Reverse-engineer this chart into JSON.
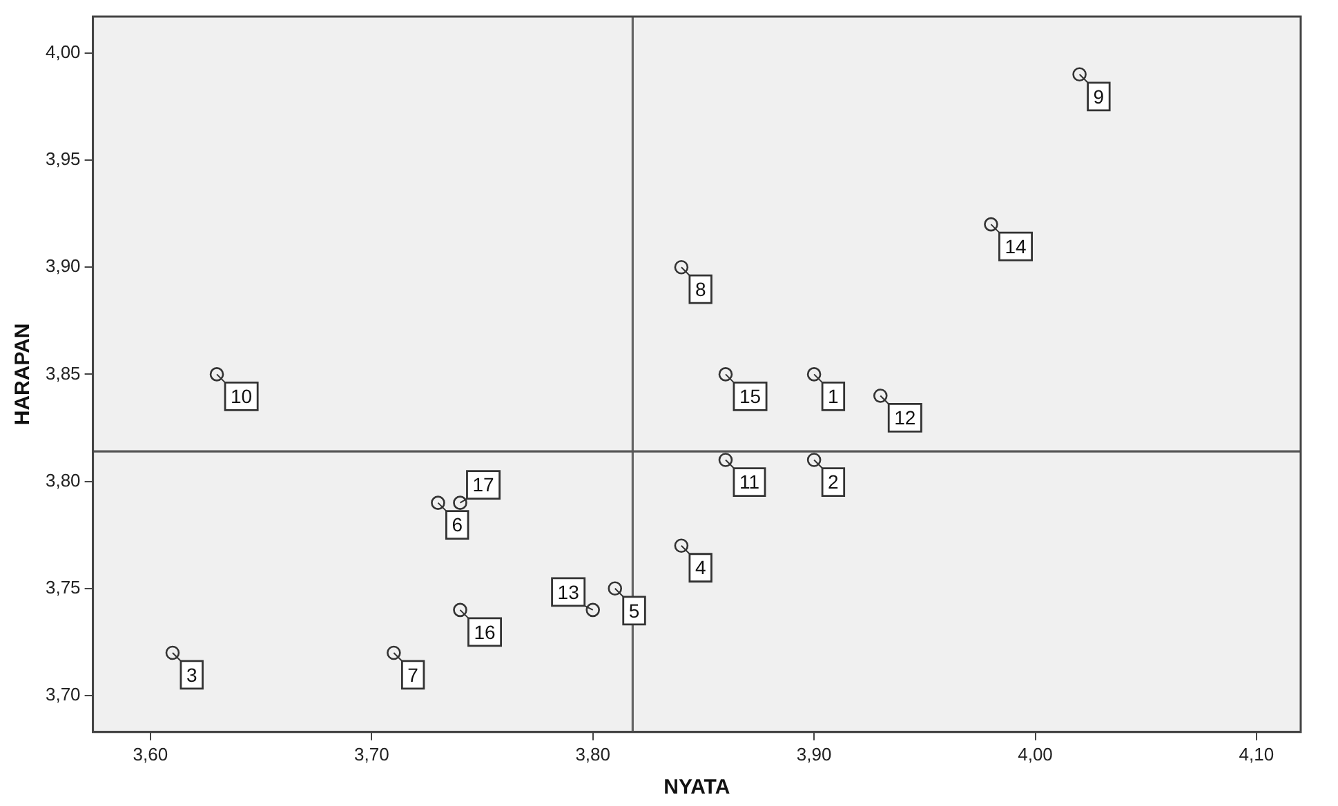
{
  "chart_data": {
    "type": "scatter",
    "xlabel": "NYATA",
    "ylabel": "HARAPAN",
    "x": [
      3.9,
      3.9,
      3.61,
      3.84,
      3.81,
      3.73,
      3.71,
      3.84,
      4.02,
      3.63,
      3.86,
      3.93,
      3.8,
      3.98,
      3.86,
      3.74,
      3.74
    ],
    "values": [
      3.85,
      3.81,
      3.72,
      3.77,
      3.75,
      3.79,
      3.72,
      3.9,
      3.99,
      3.85,
      3.81,
      3.84,
      3.74,
      3.92,
      3.85,
      3.74,
      3.79
    ],
    "color": "#333333",
    "marker": "circle",
    "grid": false,
    "legend": false,
    "xlim": [
      3.574,
      4.12
    ],
    "xticks": [
      {
        "value": 3.6,
        "label": "3,60"
      },
      {
        "value": 3.7,
        "label": "3,70"
      },
      {
        "value": 3.8,
        "label": "3,80"
      },
      {
        "value": 3.9,
        "label": "3,90"
      },
      {
        "value": 4.0,
        "label": "4,00"
      },
      {
        "value": 4.1,
        "label": "4,10"
      }
    ],
    "ylim": [
      3.683,
      4.017
    ],
    "yticks": [
      {
        "value": 3.7,
        "label": "3,70"
      },
      {
        "value": 3.75,
        "label": "3,75"
      },
      {
        "value": 3.8,
        "label": "3,80"
      },
      {
        "value": 3.85,
        "label": "3,85"
      },
      {
        "value": 3.9,
        "label": "3,90"
      },
      {
        "value": 3.95,
        "label": "3,95"
      },
      {
        "value": 4.0,
        "label": "4,00"
      }
    ],
    "ref_lines": [
      {
        "axis": "x",
        "value": 3.818,
        "color": "#666666"
      },
      {
        "axis": "y",
        "value": 3.814,
        "color": "#555555"
      }
    ],
    "annotations": [
      {
        "text": "1",
        "x": 3.9,
        "y": 3.85
      },
      {
        "text": "2",
        "x": 3.9,
        "y": 3.81
      },
      {
        "text": "3",
        "x": 3.61,
        "y": 3.72
      },
      {
        "text": "4",
        "x": 3.84,
        "y": 3.77
      },
      {
        "text": "5",
        "x": 3.81,
        "y": 3.75
      },
      {
        "text": "6",
        "x": 3.73,
        "y": 3.79
      },
      {
        "text": "7",
        "x": 3.71,
        "y": 3.72
      },
      {
        "text": "8",
        "x": 3.84,
        "y": 3.9
      },
      {
        "text": "9",
        "x": 4.02,
        "y": 3.99
      },
      {
        "text": "10",
        "x": 3.63,
        "y": 3.85
      },
      {
        "text": "11",
        "x": 3.86,
        "y": 3.81
      },
      {
        "text": "12",
        "x": 3.93,
        "y": 3.84
      },
      {
        "text": "13",
        "x": 3.8,
        "y": 3.74
      },
      {
        "text": "14",
        "x": 3.98,
        "y": 3.92
      },
      {
        "text": "15",
        "x": 3.86,
        "y": 3.85
      },
      {
        "text": "16",
        "x": 3.74,
        "y": 3.74
      },
      {
        "text": "17",
        "x": 3.74,
        "y": 3.79
      }
    ]
  }
}
